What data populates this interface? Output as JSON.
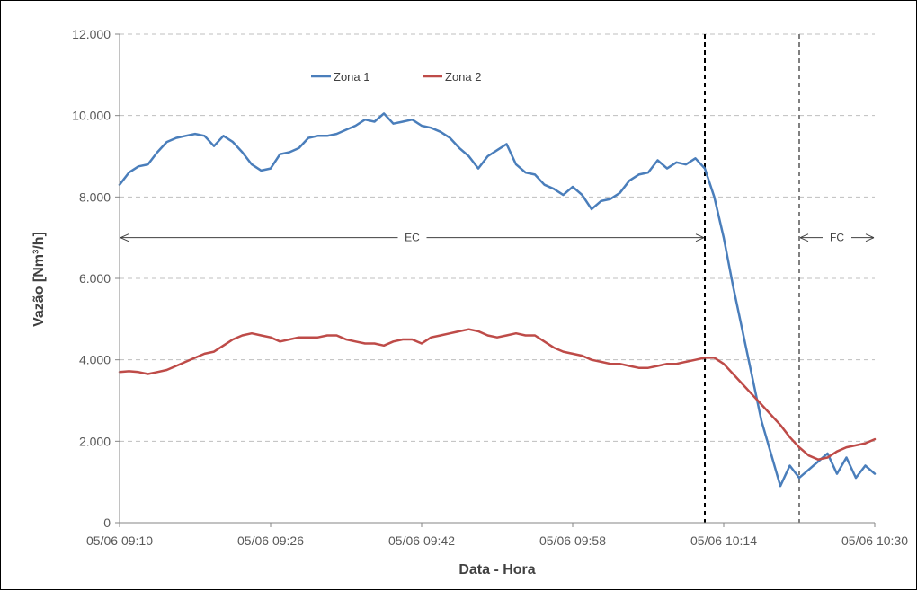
{
  "chart_data": {
    "type": "line",
    "title": "",
    "xlabel": "Data - Hora",
    "ylabel": "Vazão [Nm³/h]",
    "ylim": [
      0,
      12000
    ],
    "xlim": [
      "05/06 09:10",
      "05/06 10:30"
    ],
    "y_ticks": [
      "0",
      "2.000",
      "4.000",
      "6.000",
      "8.000",
      "10.000",
      "12.000"
    ],
    "x_ticks": [
      "05/06 09:10",
      "05/06 09:26",
      "05/06 09:42",
      "05/06 09:58",
      "05/06 10:14",
      "05/06 10:30"
    ],
    "grid": "horizontal-dashed",
    "legend": "top",
    "series": [
      {
        "name": "Zona 1",
        "color": "#4a7ebb",
        "points": [
          [
            "05/06 09:10",
            8300
          ],
          [
            "05/06 09:11",
            8600
          ],
          [
            "05/06 09:12",
            8750
          ],
          [
            "05/06 09:13",
            8800
          ],
          [
            "05/06 09:14",
            9100
          ],
          [
            "05/06 09:15",
            9350
          ],
          [
            "05/06 09:16",
            9450
          ],
          [
            "05/06 09:17",
            9500
          ],
          [
            "05/06 09:18",
            9550
          ],
          [
            "05/06 09:19",
            9500
          ],
          [
            "05/06 09:20",
            9250
          ],
          [
            "05/06 09:21",
            9500
          ],
          [
            "05/06 09:22",
            9350
          ],
          [
            "05/06 09:23",
            9100
          ],
          [
            "05/06 09:24",
            8800
          ],
          [
            "05/06 09:25",
            8650
          ],
          [
            "05/06 09:26",
            8700
          ],
          [
            "05/06 09:27",
            9050
          ],
          [
            "05/06 09:28",
            9100
          ],
          [
            "05/06 09:29",
            9200
          ],
          [
            "05/06 09:30",
            9450
          ],
          [
            "05/06 09:31",
            9500
          ],
          [
            "05/06 09:32",
            9500
          ],
          [
            "05/06 09:33",
            9550
          ],
          [
            "05/06 09:34",
            9650
          ],
          [
            "05/06 09:35",
            9750
          ],
          [
            "05/06 09:36",
            9900
          ],
          [
            "05/06 09:37",
            9850
          ],
          [
            "05/06 09:38",
            10050
          ],
          [
            "05/06 09:39",
            9800
          ],
          [
            "05/06 09:40",
            9850
          ],
          [
            "05/06 09:41",
            9900
          ],
          [
            "05/06 09:42",
            9750
          ],
          [
            "05/06 09:43",
            9700
          ],
          [
            "05/06 09:44",
            9600
          ],
          [
            "05/06 09:45",
            9450
          ],
          [
            "05/06 09:46",
            9200
          ],
          [
            "05/06 09:47",
            9000
          ],
          [
            "05/06 09:48",
            8700
          ],
          [
            "05/06 09:49",
            9000
          ],
          [
            "05/06 09:50",
            9150
          ],
          [
            "05/06 09:51",
            9300
          ],
          [
            "05/06 09:52",
            8800
          ],
          [
            "05/06 09:53",
            8600
          ],
          [
            "05/06 09:54",
            8550
          ],
          [
            "05/06 09:55",
            8300
          ],
          [
            "05/06 09:56",
            8200
          ],
          [
            "05/06 09:57",
            8050
          ],
          [
            "05/06 09:58",
            8250
          ],
          [
            "05/06 09:59",
            8050
          ],
          [
            "05/06 10:00",
            7700
          ],
          [
            "05/06 10:01",
            7900
          ],
          [
            "05/06 10:02",
            7950
          ],
          [
            "05/06 10:03",
            8100
          ],
          [
            "05/06 10:04",
            8400
          ],
          [
            "05/06 10:05",
            8550
          ],
          [
            "05/06 10:06",
            8600
          ],
          [
            "05/06 10:07",
            8900
          ],
          [
            "05/06 10:08",
            8700
          ],
          [
            "05/06 10:09",
            8850
          ],
          [
            "05/06 10:10",
            8800
          ],
          [
            "05/06 10:11",
            8950
          ],
          [
            "05/06 10:12",
            8700
          ],
          [
            "05/06 10:13",
            8000
          ],
          [
            "05/06 10:14",
            7000
          ],
          [
            "05/06 10:15",
            5800
          ],
          [
            "05/06 10:16",
            4700
          ],
          [
            "05/06 10:17",
            3600
          ],
          [
            "05/06 10:18",
            2500
          ],
          [
            "05/06 10:19",
            1700
          ],
          [
            "05/06 10:20",
            900
          ],
          [
            "05/06 10:21",
            1400
          ],
          [
            "05/06 10:22",
            1100
          ],
          [
            "05/06 10:23",
            1300
          ],
          [
            "05/06 10:24",
            1500
          ],
          [
            "05/06 10:25",
            1700
          ],
          [
            "05/06 10:26",
            1200
          ],
          [
            "05/06 10:27",
            1600
          ],
          [
            "05/06 10:28",
            1100
          ],
          [
            "05/06 10:29",
            1400
          ],
          [
            "05/06 10:30",
            1200
          ]
        ]
      },
      {
        "name": "Zona 2",
        "color": "#be4b48",
        "points": [
          [
            "05/06 09:10",
            3700
          ],
          [
            "05/06 09:11",
            3720
          ],
          [
            "05/06 09:12",
            3700
          ],
          [
            "05/06 09:13",
            3650
          ],
          [
            "05/06 09:14",
            3700
          ],
          [
            "05/06 09:15",
            3750
          ],
          [
            "05/06 09:16",
            3850
          ],
          [
            "05/06 09:17",
            3950
          ],
          [
            "05/06 09:18",
            4050
          ],
          [
            "05/06 09:19",
            4150
          ],
          [
            "05/06 09:20",
            4200
          ],
          [
            "05/06 09:21",
            4350
          ],
          [
            "05/06 09:22",
            4500
          ],
          [
            "05/06 09:23",
            4600
          ],
          [
            "05/06 09:24",
            4650
          ],
          [
            "05/06 09:25",
            4600
          ],
          [
            "05/06 09:26",
            4550
          ],
          [
            "05/06 09:27",
            4450
          ],
          [
            "05/06 09:28",
            4500
          ],
          [
            "05/06 09:29",
            4550
          ],
          [
            "05/06 09:30",
            4550
          ],
          [
            "05/06 09:31",
            4550
          ],
          [
            "05/06 09:32",
            4600
          ],
          [
            "05/06 09:33",
            4600
          ],
          [
            "05/06 09:34",
            4500
          ],
          [
            "05/06 09:35",
            4450
          ],
          [
            "05/06 09:36",
            4400
          ],
          [
            "05/06 09:37",
            4400
          ],
          [
            "05/06 09:38",
            4350
          ],
          [
            "05/06 09:39",
            4450
          ],
          [
            "05/06 09:40",
            4500
          ],
          [
            "05/06 09:41",
            4500
          ],
          [
            "05/06 09:42",
            4400
          ],
          [
            "05/06 09:43",
            4550
          ],
          [
            "05/06 09:44",
            4600
          ],
          [
            "05/06 09:45",
            4650
          ],
          [
            "05/06 09:46",
            4700
          ],
          [
            "05/06 09:47",
            4750
          ],
          [
            "05/06 09:48",
            4700
          ],
          [
            "05/06 09:49",
            4600
          ],
          [
            "05/06 09:50",
            4550
          ],
          [
            "05/06 09:51",
            4600
          ],
          [
            "05/06 09:52",
            4650
          ],
          [
            "05/06 09:53",
            4600
          ],
          [
            "05/06 09:54",
            4600
          ],
          [
            "05/06 09:55",
            4450
          ],
          [
            "05/06 09:56",
            4300
          ],
          [
            "05/06 09:57",
            4200
          ],
          [
            "05/06 09:58",
            4150
          ],
          [
            "05/06 09:59",
            4100
          ],
          [
            "05/06 10:00",
            4000
          ],
          [
            "05/06 10:01",
            3950
          ],
          [
            "05/06 10:02",
            3900
          ],
          [
            "05/06 10:03",
            3900
          ],
          [
            "05/06 10:04",
            3850
          ],
          [
            "05/06 10:05",
            3800
          ],
          [
            "05/06 10:06",
            3800
          ],
          [
            "05/06 10:07",
            3850
          ],
          [
            "05/06 10:08",
            3900
          ],
          [
            "05/06 10:09",
            3900
          ],
          [
            "05/06 10:10",
            3950
          ],
          [
            "05/06 10:11",
            4000
          ],
          [
            "05/06 10:12",
            4050
          ],
          [
            "05/06 10:13",
            4050
          ],
          [
            "05/06 10:14",
            3900
          ],
          [
            "05/06 10:15",
            3650
          ],
          [
            "05/06 10:16",
            3400
          ],
          [
            "05/06 10:17",
            3150
          ],
          [
            "05/06 10:18",
            2900
          ],
          [
            "05/06 10:19",
            2650
          ],
          [
            "05/06 10:20",
            2400
          ],
          [
            "05/06 10:21",
            2100
          ],
          [
            "05/06 10:22",
            1850
          ],
          [
            "05/06 10:23",
            1650
          ],
          [
            "05/06 10:24",
            1550
          ],
          [
            "05/06 10:25",
            1600
          ],
          [
            "05/06 10:26",
            1750
          ],
          [
            "05/06 10:27",
            1850
          ],
          [
            "05/06 10:28",
            1900
          ],
          [
            "05/06 10:29",
            1950
          ],
          [
            "05/06 10:30",
            2050
          ]
        ]
      }
    ],
    "annotations": [
      {
        "label": "EC",
        "from": "05/06 09:10",
        "to": "05/06 10:12",
        "y": 7000,
        "kind": "double-arrow"
      },
      {
        "label": "FC",
        "from": "05/06 10:22",
        "to": "05/06 10:30",
        "y": 7000,
        "kind": "double-arrow"
      }
    ],
    "vertical_markers": [
      {
        "at": "05/06 10:12",
        "color": "#000000"
      },
      {
        "at": "05/06 10:22",
        "color": "#808080"
      }
    ]
  }
}
